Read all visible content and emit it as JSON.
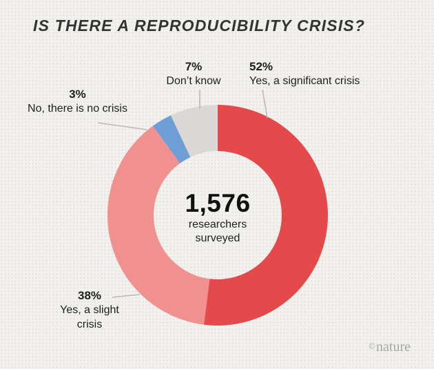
{
  "title": "IS THERE A REPRODUCIBILITY CRISIS?",
  "chart_data": {
    "type": "pie",
    "variant": "donut",
    "title": "IS THERE A REPRODUCIBILITY CRISIS?",
    "start_angle_deg": -90,
    "direction": "clockwise",
    "legend_position": "outside-labels-with-leader-lines",
    "slices": [
      {
        "id": "significant",
        "label": "Yes, a significant crisis",
        "pct": 52,
        "pct_label": "52%",
        "color": "#e4494b"
      },
      {
        "id": "slight",
        "label": "Yes, a slight crisis",
        "pct": 38,
        "pct_label": "38%",
        "color": "#f0908f"
      },
      {
        "id": "no-crisis",
        "label": "No, there is no crisis",
        "pct": 3,
        "pct_label": "3%",
        "color": "#6d9fd6"
      },
      {
        "id": "dont-know",
        "label": "Don’t know",
        "pct": 7,
        "pct_label": "7%",
        "color": "#d9d8d4"
      }
    ],
    "center": {
      "value": "1,576",
      "line1": "researchers",
      "line2": "surveyed"
    }
  },
  "footer": {
    "copyright": "©",
    "brand": "nature"
  }
}
